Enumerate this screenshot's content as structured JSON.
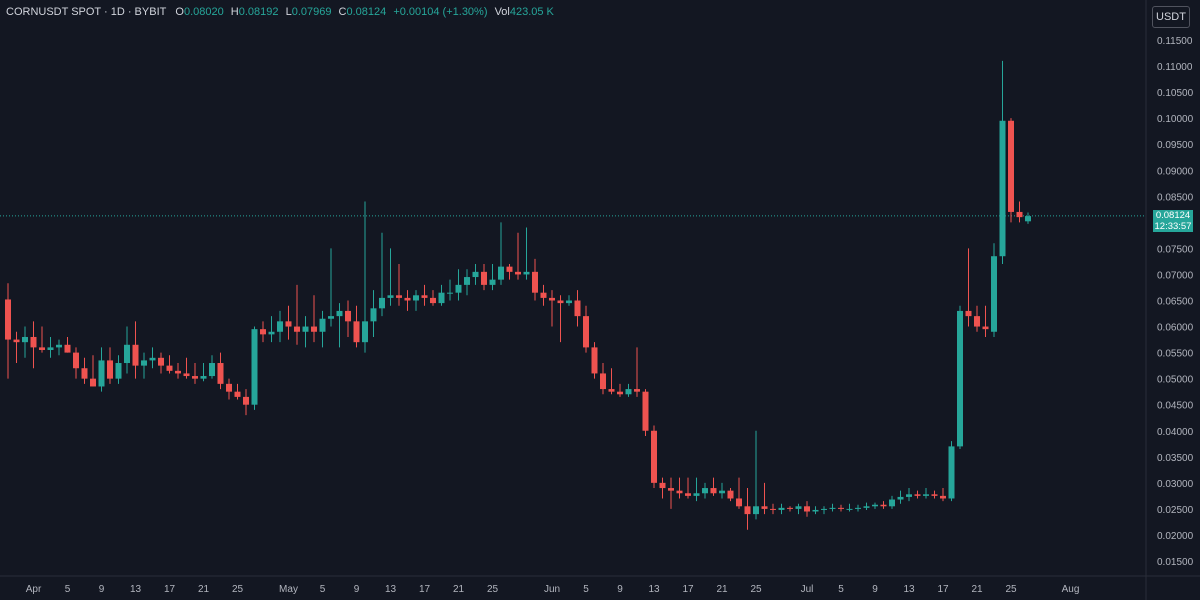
{
  "legend": {
    "symbol": "CORNUSDT SPOT · 1D · BYBIT",
    "o_label": "O",
    "o": "0.08020",
    "h_label": "H",
    "h": "0.08192",
    "l_label": "L",
    "l": "0.07969",
    "c_label": "C",
    "c": "0.08124",
    "change": "+0.00104 (+1.30%)",
    "vol_label": "Vol",
    "vol": "423.05 K"
  },
  "price_scale": {
    "currency": "USDT"
  },
  "last_price": {
    "price": "0.08124",
    "countdown": "12:33:57"
  },
  "colors": {
    "background": "#131722",
    "up": "#26a69a",
    "down": "#ef5350",
    "axis_text": "#b2b5be",
    "grid_border": "#2a2e39"
  },
  "chart_data": {
    "type": "candlestick",
    "x_label_ticks": [
      "Apr",
      "5",
      "9",
      "13",
      "17",
      "21",
      "25",
      "May",
      "5",
      "9",
      "13",
      "17",
      "21",
      "25",
      "Jun",
      "5",
      "9",
      "13",
      "17",
      "21",
      "25",
      "Jul",
      "5",
      "9",
      "13",
      "17",
      "21",
      "25",
      "Aug"
    ],
    "y_ticks": [
      "0.11500",
      "0.11000",
      "0.10500",
      "0.10000",
      "0.09500",
      "0.09000",
      "0.08500",
      "0.08000",
      "0.07500",
      "0.07000",
      "0.06500",
      "0.06000",
      "0.05500",
      "0.05000",
      "0.04500",
      "0.04000",
      "0.03500",
      "0.03000",
      "0.02500",
      "0.02000",
      "0.01500"
    ],
    "ylim": [
      0.012,
      0.1175
    ],
    "first_date": "2025-03-29",
    "last_price_line": 0.08124,
    "ohlc": [
      [
        0.0652,
        0.0683,
        0.05,
        0.0575
      ],
      [
        0.0575,
        0.059,
        0.053,
        0.057
      ],
      [
        0.057,
        0.06,
        0.054,
        0.058
      ],
      [
        0.058,
        0.061,
        0.052,
        0.056
      ],
      [
        0.056,
        0.06,
        0.055,
        0.0555
      ],
      [
        0.0555,
        0.058,
        0.054,
        0.056
      ],
      [
        0.056,
        0.0575,
        0.0545,
        0.0565
      ],
      [
        0.0565,
        0.058,
        0.055,
        0.055
      ],
      [
        0.055,
        0.056,
        0.05,
        0.052
      ],
      [
        0.052,
        0.054,
        0.049,
        0.05
      ],
      [
        0.05,
        0.0545,
        0.0485,
        0.0485
      ],
      [
        0.0485,
        0.056,
        0.0475,
        0.0535
      ],
      [
        0.0535,
        0.056,
        0.049,
        0.05
      ],
      [
        0.05,
        0.0545,
        0.049,
        0.053
      ],
      [
        0.053,
        0.06,
        0.051,
        0.0565
      ],
      [
        0.0565,
        0.061,
        0.05,
        0.0525
      ],
      [
        0.0525,
        0.055,
        0.05,
        0.0535
      ],
      [
        0.0535,
        0.056,
        0.052,
        0.054
      ],
      [
        0.054,
        0.055,
        0.051,
        0.0525
      ],
      [
        0.0525,
        0.0545,
        0.051,
        0.0515
      ],
      [
        0.0515,
        0.053,
        0.05,
        0.051
      ],
      [
        0.051,
        0.054,
        0.05,
        0.0505
      ],
      [
        0.0505,
        0.053,
        0.049,
        0.05
      ],
      [
        0.05,
        0.053,
        0.0495,
        0.0505
      ],
      [
        0.0505,
        0.0545,
        0.05,
        0.053
      ],
      [
        0.053,
        0.055,
        0.048,
        0.049
      ],
      [
        0.049,
        0.05,
        0.046,
        0.0475
      ],
      [
        0.0475,
        0.049,
        0.046,
        0.0465
      ],
      [
        0.0465,
        0.048,
        0.043,
        0.045
      ],
      [
        0.045,
        0.06,
        0.044,
        0.0595
      ],
      [
        0.0595,
        0.061,
        0.057,
        0.0585
      ],
      [
        0.0585,
        0.062,
        0.057,
        0.059
      ],
      [
        0.059,
        0.063,
        0.057,
        0.061
      ],
      [
        0.061,
        0.064,
        0.0575,
        0.06
      ],
      [
        0.06,
        0.068,
        0.0565,
        0.059
      ],
      [
        0.059,
        0.062,
        0.056,
        0.06
      ],
      [
        0.06,
        0.066,
        0.057,
        0.059
      ],
      [
        0.059,
        0.063,
        0.056,
        0.0615
      ],
      [
        0.0615,
        0.075,
        0.06,
        0.062
      ],
      [
        0.062,
        0.0645,
        0.056,
        0.063
      ],
      [
        0.063,
        0.065,
        0.058,
        0.061
      ],
      [
        0.061,
        0.064,
        0.056,
        0.057
      ],
      [
        0.057,
        0.084,
        0.055,
        0.061
      ],
      [
        0.061,
        0.067,
        0.058,
        0.0635
      ],
      [
        0.0635,
        0.078,
        0.062,
        0.0655
      ],
      [
        0.0655,
        0.075,
        0.064,
        0.066
      ],
      [
        0.066,
        0.072,
        0.064,
        0.0655
      ],
      [
        0.0655,
        0.067,
        0.063,
        0.065
      ],
      [
        0.065,
        0.067,
        0.063,
        0.066
      ],
      [
        0.066,
        0.068,
        0.064,
        0.0655
      ],
      [
        0.0655,
        0.067,
        0.064,
        0.0645
      ],
      [
        0.0645,
        0.068,
        0.064,
        0.0665
      ],
      [
        0.0665,
        0.069,
        0.065,
        0.0665
      ],
      [
        0.0665,
        0.071,
        0.065,
        0.068
      ],
      [
        0.068,
        0.071,
        0.066,
        0.0695
      ],
      [
        0.0695,
        0.072,
        0.068,
        0.0705
      ],
      [
        0.0705,
        0.072,
        0.067,
        0.068
      ],
      [
        0.068,
        0.072,
        0.067,
        0.069
      ],
      [
        0.069,
        0.08,
        0.068,
        0.0715
      ],
      [
        0.0715,
        0.072,
        0.069,
        0.0705
      ],
      [
        0.0705,
        0.078,
        0.069,
        0.07
      ],
      [
        0.07,
        0.079,
        0.069,
        0.0705
      ],
      [
        0.0705,
        0.073,
        0.065,
        0.0665
      ],
      [
        0.0665,
        0.068,
        0.064,
        0.0655
      ],
      [
        0.0655,
        0.067,
        0.06,
        0.065
      ],
      [
        0.065,
        0.066,
        0.057,
        0.0645
      ],
      [
        0.0645,
        0.066,
        0.064,
        0.065
      ],
      [
        0.065,
        0.067,
        0.06,
        0.062
      ],
      [
        0.062,
        0.064,
        0.055,
        0.056
      ],
      [
        0.056,
        0.057,
        0.05,
        0.051
      ],
      [
        0.051,
        0.053,
        0.047,
        0.048
      ],
      [
        0.048,
        0.052,
        0.047,
        0.0475
      ],
      [
        0.0475,
        0.049,
        0.0465,
        0.047
      ],
      [
        0.047,
        0.049,
        0.0465,
        0.048
      ],
      [
        0.048,
        0.056,
        0.0465,
        0.0475
      ],
      [
        0.0475,
        0.048,
        0.039,
        0.04
      ],
      [
        0.04,
        0.041,
        0.029,
        0.03
      ],
      [
        0.03,
        0.031,
        0.027,
        0.029
      ],
      [
        0.029,
        0.031,
        0.025,
        0.0285
      ],
      [
        0.0285,
        0.031,
        0.027,
        0.028
      ],
      [
        0.028,
        0.031,
        0.027,
        0.0275
      ],
      [
        0.0275,
        0.031,
        0.0265,
        0.028
      ],
      [
        0.028,
        0.03,
        0.027,
        0.029
      ],
      [
        0.029,
        0.031,
        0.0275,
        0.028
      ],
      [
        0.028,
        0.03,
        0.027,
        0.0285
      ],
      [
        0.0285,
        0.029,
        0.0265,
        0.027
      ],
      [
        0.027,
        0.031,
        0.025,
        0.0255
      ],
      [
        0.0255,
        0.029,
        0.021,
        0.024
      ],
      [
        0.024,
        0.04,
        0.023,
        0.0255
      ],
      [
        0.0255,
        0.03,
        0.024,
        0.025
      ],
      [
        0.025,
        0.026,
        0.024,
        0.0248
      ],
      [
        0.0248,
        0.026,
        0.024,
        0.0252
      ],
      [
        0.0252,
        0.0255,
        0.0245,
        0.025
      ],
      [
        0.025,
        0.026,
        0.024,
        0.0255
      ],
      [
        0.0255,
        0.0265,
        0.0235,
        0.0245
      ],
      [
        0.0245,
        0.0255,
        0.024,
        0.0248
      ],
      [
        0.0248,
        0.0255,
        0.024,
        0.025
      ],
      [
        0.025,
        0.026,
        0.0245,
        0.0252
      ],
      [
        0.0252,
        0.0258,
        0.0245,
        0.025
      ],
      [
        0.025,
        0.026,
        0.0245,
        0.025
      ],
      [
        0.025,
        0.0258,
        0.0245,
        0.0252
      ],
      [
        0.0252,
        0.0262,
        0.0248,
        0.0255
      ],
      [
        0.0255,
        0.0262,
        0.025,
        0.0258
      ],
      [
        0.0258,
        0.0265,
        0.025,
        0.0255
      ],
      [
        0.0255,
        0.0275,
        0.025,
        0.0268
      ],
      [
        0.0268,
        0.0285,
        0.026,
        0.0273
      ],
      [
        0.0273,
        0.029,
        0.0265,
        0.0278
      ],
      [
        0.0278,
        0.0285,
        0.027,
        0.0275
      ],
      [
        0.0275,
        0.029,
        0.027,
        0.0278
      ],
      [
        0.0278,
        0.0285,
        0.027,
        0.0275
      ],
      [
        0.0275,
        0.029,
        0.0265,
        0.027
      ],
      [
        0.027,
        0.038,
        0.0265,
        0.037
      ],
      [
        0.037,
        0.064,
        0.0365,
        0.063
      ],
      [
        0.063,
        0.075,
        0.06,
        0.062
      ],
      [
        0.062,
        0.064,
        0.059,
        0.06
      ],
      [
        0.06,
        0.064,
        0.058,
        0.0595
      ],
      [
        0.059,
        0.076,
        0.058,
        0.0735
      ],
      [
        0.0735,
        0.111,
        0.072,
        0.0995
      ],
      [
        0.0995,
        0.1,
        0.08,
        0.082
      ],
      [
        0.082,
        0.084,
        0.08,
        0.081
      ],
      [
        0.0802,
        0.0819,
        0.0797,
        0.0812
      ]
    ]
  }
}
